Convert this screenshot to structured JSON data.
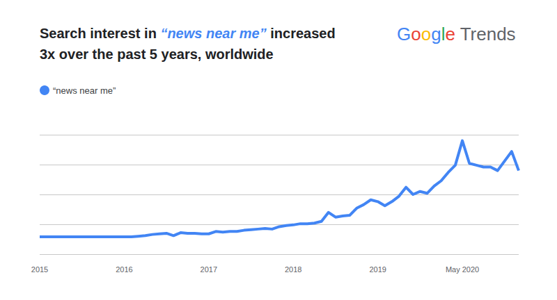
{
  "chart_data": {
    "type": "line",
    "title": [
      "Search interest in “news near me” increased",
      "3x over the past 5 years, worldwide"
    ],
    "logo": "Google Trends",
    "categories": [
      "2015",
      null,
      null,
      null,
      null,
      null,
      null,
      null,
      null,
      null,
      null,
      null,
      "2016",
      null,
      null,
      null,
      null,
      null,
      null,
      null,
      null,
      null,
      null,
      null,
      "2017",
      null,
      null,
      null,
      null,
      null,
      null,
      null,
      null,
      null,
      null,
      null,
      "2018",
      null,
      null,
      null,
      null,
      null,
      null,
      null,
      null,
      null,
      null,
      null,
      "2019",
      null,
      null,
      null,
      null,
      null,
      null,
      null,
      null,
      null,
      null,
      null,
      "May 2020",
      null,
      null,
      null,
      null,
      null,
      null,
      null,
      null
    ],
    "series": [
      {
        "name": "“news near me”",
        "color": "#4285f4",
        "values": [
          14.5,
          14.5,
          14.5,
          14.5,
          14.5,
          14.5,
          14.5,
          14.5,
          14.5,
          14.5,
          14.5,
          14.5,
          14.5,
          14.5,
          15,
          15.5,
          16.5,
          17,
          17.5,
          15.5,
          18,
          17.5,
          17.5,
          17,
          17,
          19,
          18.5,
          19,
          19,
          20,
          20.5,
          21,
          21.5,
          21,
          23,
          24,
          24.5,
          25.5,
          25.5,
          26,
          27.5,
          35,
          31,
          32,
          32.5,
          38.5,
          41.5,
          45.5,
          44,
          40.5,
          44,
          48.5,
          56,
          50,
          52.5,
          51,
          57,
          61.5,
          68.5,
          74.5,
          95,
          76,
          74.5,
          73,
          73,
          70,
          78,
          86,
          70
        ]
      }
    ],
    "ylim": [
      0,
      100
    ],
    "yticks": [
      0,
      25,
      50,
      75,
      100
    ],
    "grid": true,
    "legend": "top-left",
    "tick_labels": "x"
  }
}
